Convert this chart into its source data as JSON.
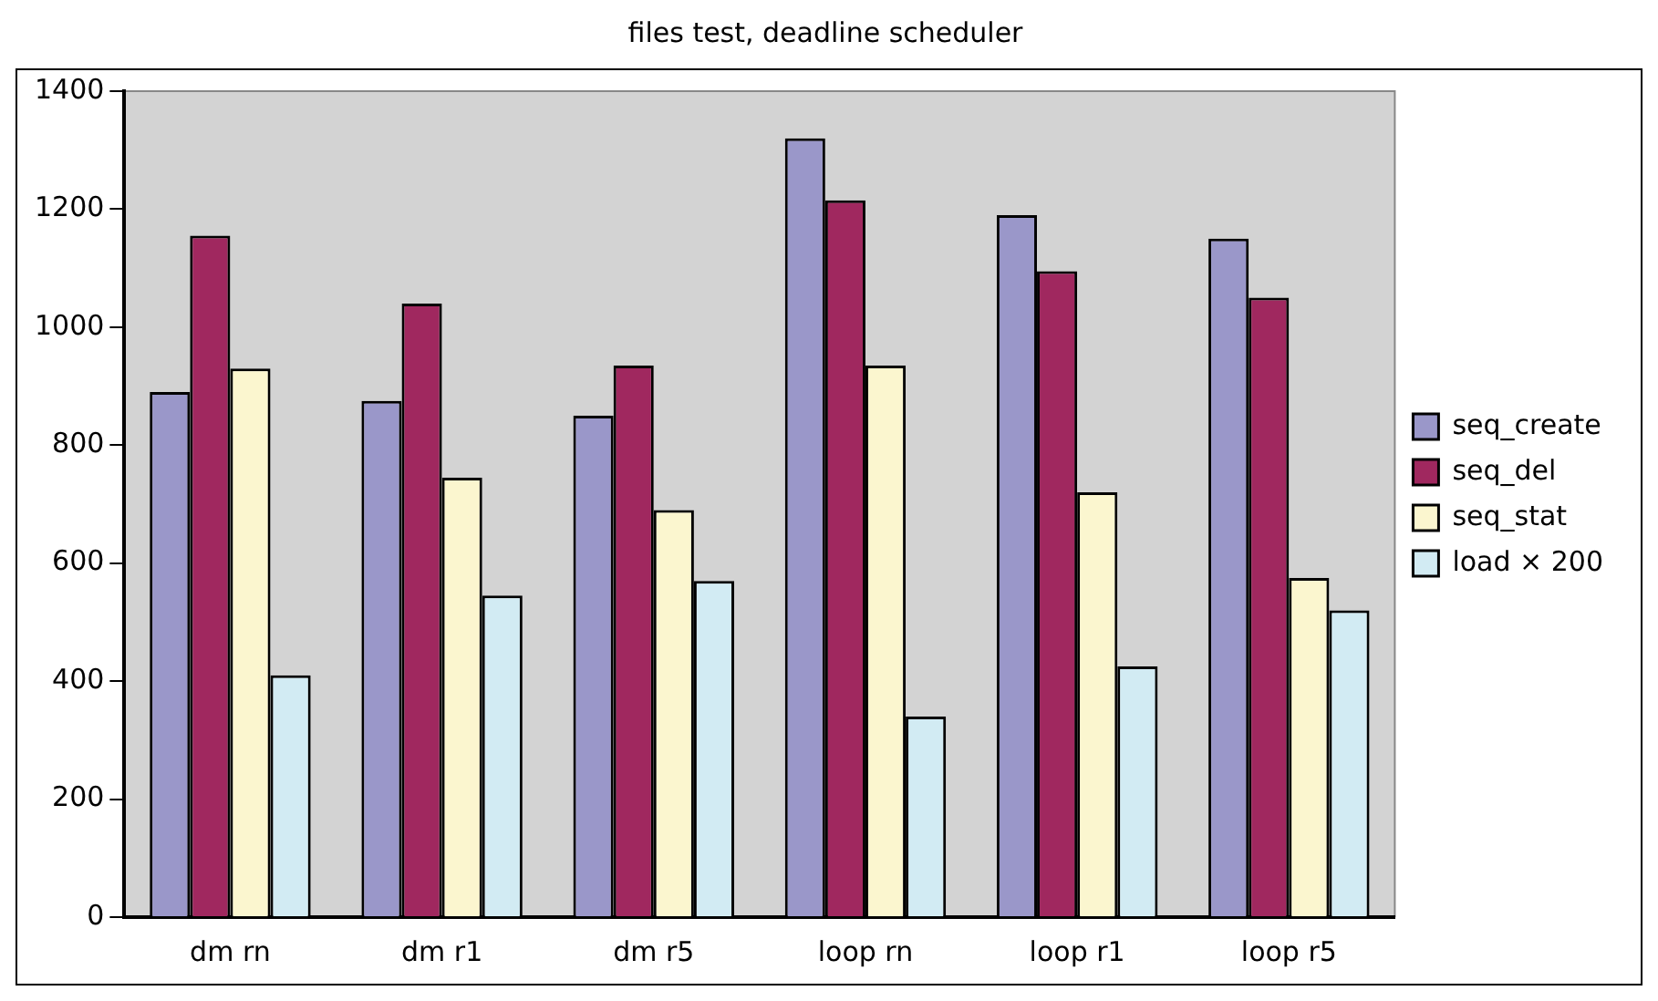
{
  "chart_data": {
    "type": "bar",
    "title": "files test, deadline scheduler",
    "categories": [
      "dm rn",
      "dm r1",
      "dm r5",
      "loop rn",
      "loop r1",
      "loop r5"
    ],
    "series": [
      {
        "name": "seq_create",
        "color": "#9a97c9",
        "values": [
          890,
          875,
          850,
          1320,
          1190,
          1150
        ]
      },
      {
        "name": "seq_del",
        "color": "#a0285f",
        "values": [
          1155,
          1040,
          935,
          1215,
          1095,
          1050
        ]
      },
      {
        "name": "seq_stat",
        "color": "#fbf6cf",
        "values": [
          930,
          745,
          690,
          935,
          720,
          575
        ]
      },
      {
        "name": "load × 200",
        "color": "#d2ebf3",
        "values": [
          410,
          545,
          570,
          340,
          425,
          520
        ]
      }
    ],
    "ylim": [
      0,
      1400
    ],
    "yticks": [
      0,
      200,
      400,
      600,
      800,
      1000,
      1200,
      1400
    ],
    "grid": false,
    "legend": "right"
  }
}
